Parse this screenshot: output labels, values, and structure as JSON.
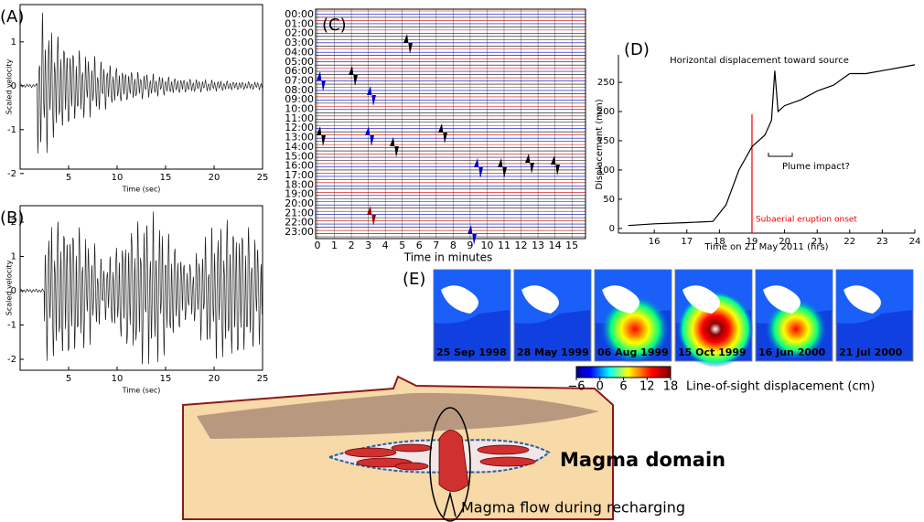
{
  "panel_a": {
    "label": "(A)",
    "x_label": "Time (sec)",
    "y_label": "Scaled velocity",
    "xlim": [
      0,
      25
    ],
    "xticks": [
      5,
      10,
      15,
      20,
      25
    ],
    "ylim": [
      -1.9,
      1.85
    ],
    "yticks": [
      1,
      0,
      -1,
      -2
    ]
  },
  "panel_b": {
    "label": "(B)",
    "x_label": "Time (sec)",
    "y_label": "Scaled velocity",
    "xlim": [
      0,
      25
    ],
    "xticks": [
      5,
      10,
      15,
      20,
      25
    ],
    "ylim": [
      -2.32,
      2.48
    ],
    "yticks": [
      2,
      1,
      0,
      -1,
      -2
    ]
  },
  "panel_c": {
    "label": "(C)",
    "x_label": "Time in minutes",
    "hours": [
      "00:00",
      "01:00",
      "02:00",
      "03:00",
      "04:00",
      "05:00",
      "06:00",
      "07:00",
      "08:00",
      "09:00",
      "10:00",
      "11:00",
      "12:00",
      "13:00",
      "14:00",
      "15:00",
      "16:00",
      "17:00",
      "18:00",
      "19:00",
      "20:00",
      "21:00",
      "22:00",
      "23:00"
    ],
    "xlim": [
      0,
      15.8
    ],
    "xticks": [
      0,
      1,
      2,
      3,
      4,
      5,
      6,
      7,
      8,
      9,
      10,
      11,
      12,
      13,
      14,
      15
    ]
  },
  "panel_d": {
    "label": "(D)",
    "title": "Horizontal displacement toward source",
    "x_label": "Time on 21 May 2011 (hrs)",
    "y_label": "Displacement (mm)",
    "annotation": "Plume impact?",
    "onset_label": "Subaerial eruption onset",
    "onset_x": 19,
    "xlim": [
      14.9,
      24
    ],
    "xticks": [
      16,
      17,
      18,
      19,
      20,
      21,
      22,
      23,
      24
    ],
    "ylim": [
      -8,
      297
    ],
    "yticks": [
      0,
      50,
      100,
      150,
      200,
      250
    ],
    "x": [
      15.2,
      16,
      17,
      17.8,
      18.2,
      18.6,
      19,
      19.4,
      19.6,
      19.7,
      19.8,
      20,
      20.5,
      21,
      21.5,
      22,
      22.5,
      23,
      23.5,
      24
    ],
    "values": [
      5,
      8,
      10,
      12,
      40,
      100,
      140,
      160,
      185,
      270,
      200,
      210,
      220,
      235,
      245,
      265,
      265,
      270,
      275,
      280
    ]
  },
  "panel_e": {
    "label": "(E)",
    "dates": [
      "25 Sep 1998",
      "28 May 1999",
      "06 Aug 1999",
      "15 Oct 1999",
      "16 Jun 2000",
      "21 Jul 2000"
    ],
    "colorbar_label": "Line-of-sight  displacement (cm)",
    "clim": [
      -6,
      18
    ],
    "cticks": [
      {
        "value": -6,
        "label": "−6"
      },
      0,
      6,
      12,
      18
    ]
  },
  "diagram": {
    "domain_label": "Magma domain",
    "flow_label": "Magma flow during recharging"
  }
}
